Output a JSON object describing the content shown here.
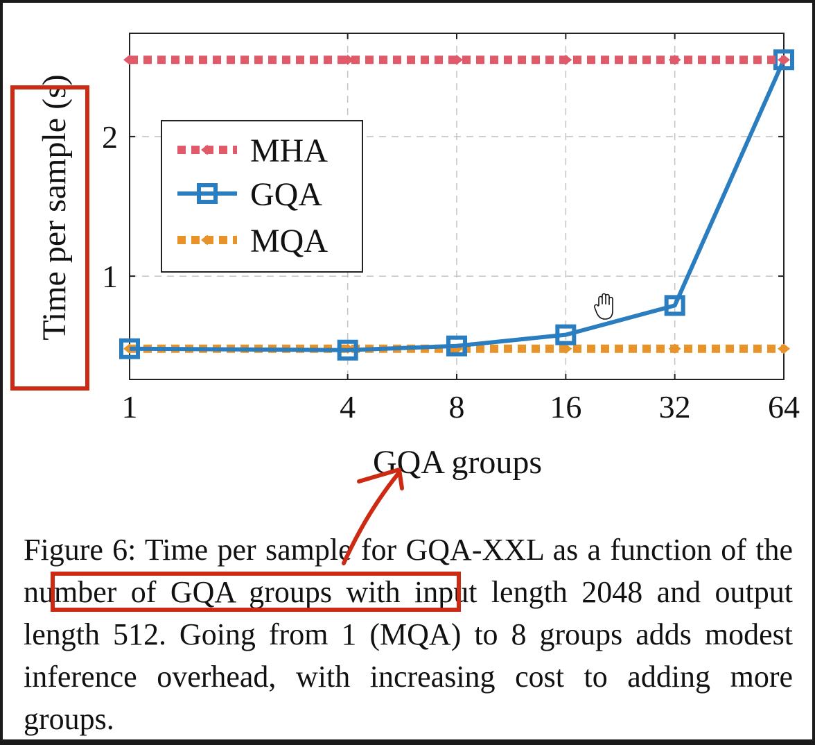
{
  "chart_data": {
    "type": "line",
    "title": "",
    "xlabel": "GQA groups",
    "ylabel": "Time per sample (s)",
    "x_scale": "log2",
    "x": [
      1,
      4,
      8,
      16,
      32,
      64
    ],
    "x_tick_labels": [
      "1",
      "4",
      "8",
      "16",
      "32",
      "64"
    ],
    "y_ticks": [
      1,
      2
    ],
    "y_tick_labels": [
      "1",
      "2"
    ],
    "xlim": [
      1,
      64
    ],
    "ylim": [
      0.26,
      2.74
    ],
    "grid": true,
    "legend_position": "upper-left",
    "series": [
      {
        "name": "MHA",
        "style": "dotted",
        "marker": "diamond",
        "color": "#e05a6a",
        "values": [
          2.55,
          2.55,
          2.55,
          2.55,
          2.55,
          2.55
        ]
      },
      {
        "name": "GQA",
        "style": "solid",
        "marker": "square",
        "color": "#2a7ec0",
        "values": [
          0.48,
          0.47,
          0.5,
          0.58,
          0.79,
          2.55
        ]
      },
      {
        "name": "MQA",
        "style": "dotted",
        "marker": "diamond",
        "color": "#e8922a",
        "values": [
          0.48,
          0.48,
          0.48,
          0.48,
          0.48,
          0.48
        ]
      }
    ]
  },
  "caption": {
    "pre": "Figure 6: Time per sample for GQA-XXL as a function of ",
    "highlight": "the number of GQA groups",
    "post": " with input length 2048 and output length 512. Going from 1 (MQA) to 8 groups adds modest inference overhead, with increasing cost to adding more groups."
  },
  "annotations": {
    "box_color": "#cc2a12",
    "cursor_icon": "hand-cursor-icon"
  }
}
